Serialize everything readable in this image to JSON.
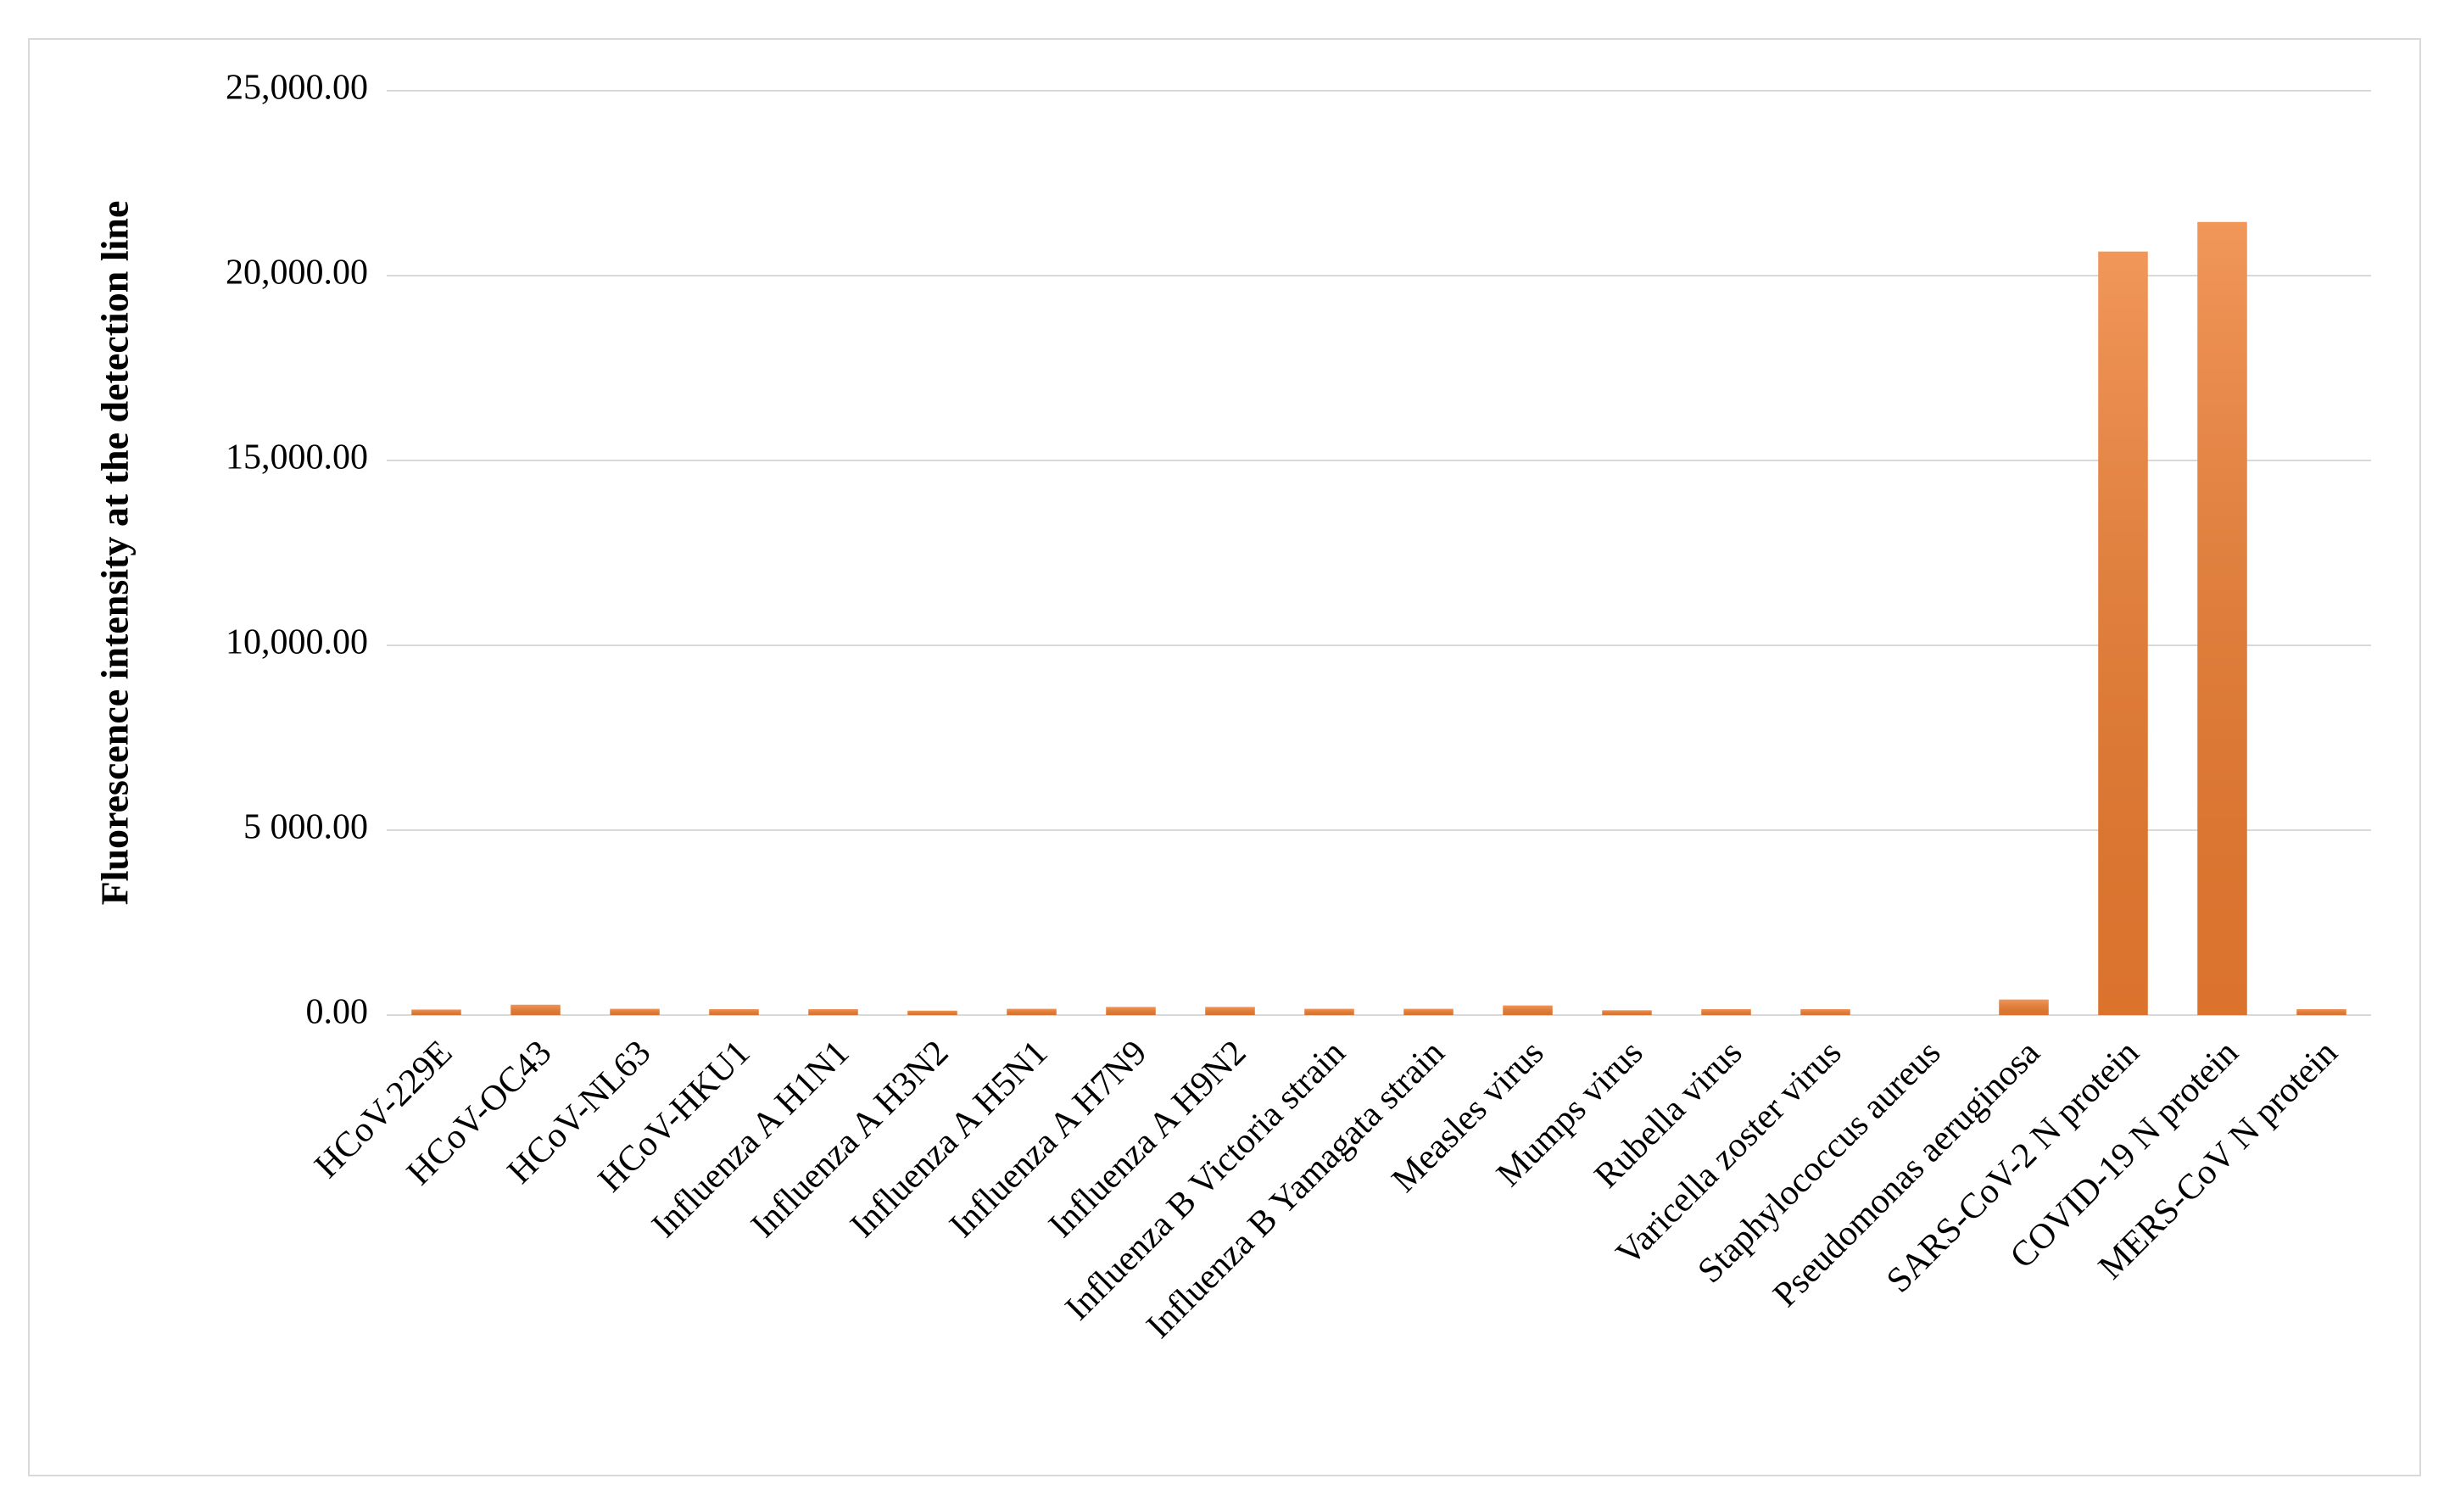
{
  "chart_data": {
    "type": "bar",
    "y_label": "Fluorescence intensity at the detection line",
    "categories": [
      "HCoV-229E",
      "HCoV-OC43",
      "HCoV-NL63",
      "HCoV-HKU1",
      "Influenza A H1N1",
      "Influenza A H3N2",
      "Influenza A H5N1",
      "Influenza A H7N9",
      "Influenza A H9N2",
      "Influenza B Victoria strain",
      "Influenza B Yamagata strain",
      "Measles virus",
      "Mumps virus",
      "Rubella virus",
      "Varicella zoster virus",
      "Staphylococcus aureus",
      "Pseudomonas aeruginosa",
      "SARS-CoV-2 N protein",
      "COVID-19 N protein",
      "MERS-CoV N protein"
    ],
    "values": [
      150,
      280,
      170,
      160,
      160,
      120,
      170,
      220,
      220,
      170,
      170,
      260,
      130,
      160,
      160,
      0,
      420,
      20650,
      21450,
      160
    ],
    "color": "#ee7d31",
    "ylim": [
      0,
      25000
    ],
    "yticks": [
      {
        "value": 0,
        "label": "0.00"
      },
      {
        "value": 5000,
        "label": "5 000.00"
      },
      {
        "value": 10000,
        "label": "10,000.00"
      },
      {
        "value": 15000,
        "label": "15,000.00"
      },
      {
        "value": 20000,
        "label": "20,000.00"
      },
      {
        "value": 25000,
        "label": "25,000.00"
      }
    ],
    "grid": true
  }
}
